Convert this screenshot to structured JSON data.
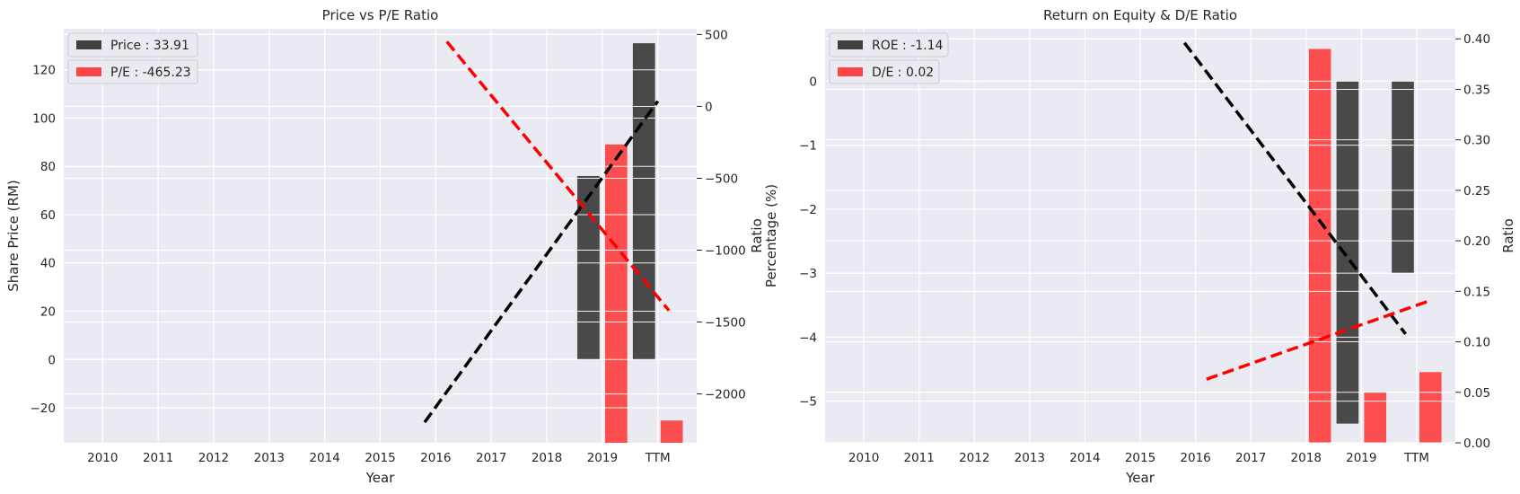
{
  "chart_data": [
    {
      "type": "bar",
      "title": "Price vs P/E Ratio",
      "xlabel": "Year",
      "ylabel": "Share Price (RM)",
      "y2label": "Ratio",
      "categories": [
        "2010",
        "2011",
        "2012",
        "2013",
        "2014",
        "2015",
        "2016",
        "2017",
        "2018",
        "2019",
        "TTM"
      ],
      "ylim": [
        -34.5,
        137
      ],
      "y2lim": [
        -2340,
        540
      ],
      "yticks": [
        -20,
        0,
        20,
        40,
        60,
        80,
        100,
        120
      ],
      "y2ticks": [
        -2000,
        -1500,
        -1000,
        -500,
        0,
        500
      ],
      "y2tick_labels": [
        "−2000",
        "−1500",
        "−1000",
        "−500",
        "0",
        "500"
      ],
      "ytick_labels": [
        "−20",
        "0",
        "20",
        "40",
        "60",
        "80",
        "100",
        "120"
      ],
      "grid": true,
      "legend_position": "top-left",
      "legend": [
        "Price : 33.91",
        "P/E : -465.23"
      ],
      "series": [
        {
          "name": "Price",
          "axis": "left",
          "color": "#2d2d2d",
          "offset": -0.25,
          "values": [
            null,
            null,
            null,
            null,
            null,
            null,
            null,
            null,
            null,
            76,
            131
          ]
        },
        {
          "name": "P/E",
          "axis": "right",
          "color": "#ff3333",
          "offset": 0.25,
          "values": [
            null,
            null,
            null,
            null,
            null,
            null,
            null,
            null,
            null,
            -265,
            -2185
          ]
        }
      ],
      "trendlines": [
        {
          "axis": "left",
          "color": "#000000",
          "from": [
            5.8,
            -26
          ],
          "to": [
            10.0,
            107
          ]
        },
        {
          "axis": "right",
          "color": "#ff0000",
          "from": [
            6.2,
            450
          ],
          "to": [
            10.2,
            -1420
          ]
        }
      ]
    },
    {
      "type": "bar",
      "title": "Return on Equity & D/E Ratio",
      "xlabel": "Year",
      "ylabel": "Percentage (%)",
      "y2label": "Ratio",
      "categories": [
        "2010",
        "2011",
        "2012",
        "2013",
        "2014",
        "2015",
        "2016",
        "2017",
        "2018",
        "2019",
        "TTM"
      ],
      "ylim": [
        -5.65,
        0.82
      ],
      "y2lim": [
        0.0,
        0.41
      ],
      "yticks": [
        -5,
        -4,
        -3,
        -2,
        -1,
        0
      ],
      "y2ticks": [
        0.0,
        0.05,
        0.1,
        0.15,
        0.2,
        0.25,
        0.3,
        0.35,
        0.4
      ],
      "ytick_labels": [
        "−5",
        "−4",
        "−3",
        "−2",
        "−1",
        "0"
      ],
      "y2tick_labels": [
        "0.00",
        "0.05",
        "0.10",
        "0.15",
        "0.20",
        "0.25",
        "0.30",
        "0.35",
        "0.40"
      ],
      "grid": true,
      "legend_position": "top-left",
      "legend": [
        "ROE : -1.14",
        "D/E : 0.02"
      ],
      "series": [
        {
          "name": "ROE",
          "axis": "left",
          "color": "#2d2d2d",
          "offset": -0.25,
          "values": [
            null,
            null,
            null,
            null,
            null,
            null,
            null,
            null,
            null,
            -5.35,
            -3.0
          ]
        },
        {
          "name": "D/E",
          "axis": "right",
          "color": "#ff3333",
          "offset": 0.25,
          "values": [
            null,
            null,
            null,
            null,
            null,
            null,
            null,
            null,
            0.39,
            0.05,
            0.07
          ]
        }
      ],
      "trendlines": [
        {
          "axis": "left",
          "color": "#000000",
          "from": [
            5.8,
            0.6
          ],
          "to": [
            9.8,
            -3.95
          ]
        },
        {
          "axis": "right",
          "color": "#ff0000",
          "from": [
            6.2,
            0.063
          ],
          "to": [
            10.2,
            0.14
          ]
        }
      ]
    }
  ]
}
